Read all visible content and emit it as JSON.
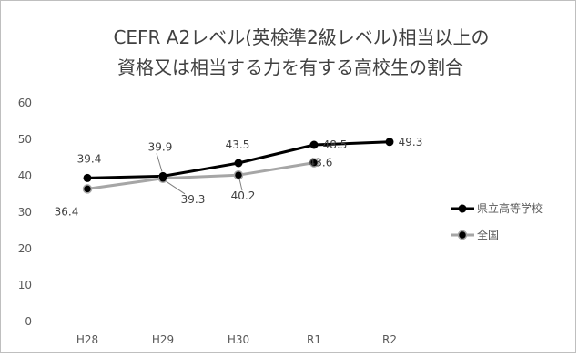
{
  "chart_data": {
    "type": "line",
    "title_lines": [
      "CEFR A2レベル(英検準2級レベル)相当以上の",
      "資格又は相当する力を有する高校生の割合"
    ],
    "categories": [
      "H28",
      "H29",
      "H30",
      "R1",
      "R2"
    ],
    "ylim": [
      0,
      60
    ],
    "yticks": [
      "0",
      "10",
      "20",
      "30",
      "40",
      "50",
      "60"
    ],
    "grid": false,
    "legend_position": "right",
    "series": [
      {
        "name": "県立高等学校",
        "color": "#000000",
        "values": [
          39.4,
          39.9,
          43.5,
          48.5,
          49.3
        ],
        "labels": [
          "39.4",
          "39.9",
          "43.5",
          "48.5",
          "49.3"
        ]
      },
      {
        "name": "全国",
        "color": "#a6a6a6",
        "values": [
          36.4,
          39.3,
          40.2,
          43.6,
          null
        ],
        "labels": [
          "36.4",
          "39.3",
          "40.2",
          "43.6",
          null
        ]
      }
    ]
  }
}
